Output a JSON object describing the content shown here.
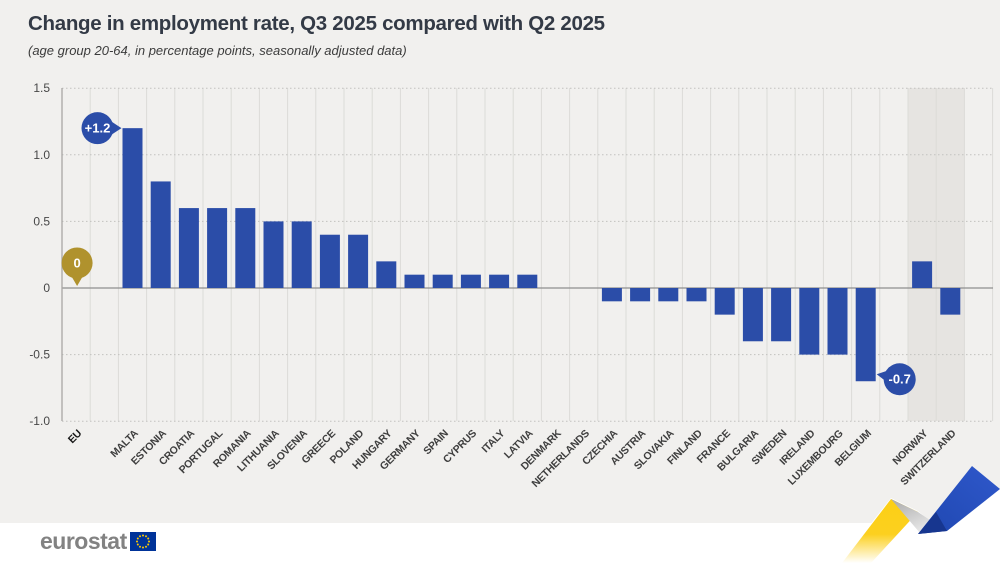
{
  "page": {
    "title": "Change in employment rate, Q3 2025 compared with Q2 2025",
    "subtitle": "(age group 20-64, in percentage points, seasonally adjusted data)"
  },
  "footer": {
    "logo_text": "eurostat"
  },
  "colors": {
    "background": "#f1f0ee",
    "bar_blue": "#2b4da8",
    "callout_blue": "#2b4da8",
    "eu_gold": "#b0922d",
    "highlight_band": "#e6e4e1",
    "grid_vertical": "#dcdbd8",
    "grid_dotted": "#c2c1bf",
    "zero_line": "#8e8e8e",
    "axis_line": "#a8a7a5",
    "tick_text": "#474747",
    "label_text": "#3e3e3e",
    "footer_bg": "#ffffff",
    "ribbon_yellow": "#fccf15",
    "ribbon_blue": "#2950c2"
  },
  "chart_data": {
    "type": "bar",
    "title": "Change in employment rate, Q3 2025 compared with Q2 2025",
    "subtitle": "(age group 20-64, in percentage points, seasonally adjusted data)",
    "xlabel": "",
    "ylabel": "",
    "ylim": [
      -1.0,
      1.5
    ],
    "grid": true,
    "ytick_values": [
      1.5,
      1.0,
      0.5,
      0,
      -0.5,
      -1.0
    ],
    "ytick_labels": [
      "1.5",
      "1.0",
      "0.5",
      "0",
      "-0.5",
      "-1.0"
    ],
    "categories": [
      "EU",
      "MALTA",
      "ESTONIA",
      "CROATIA",
      "PORTUGAL",
      "ROMANIA",
      "LITHUANIA",
      "SLOVENIA",
      "GREECE",
      "POLAND",
      "HUNGARY",
      "GERMANY",
      "SPAIN",
      "CYPRUS",
      "ITALY",
      "LATVIA",
      "DENMARK",
      "NETHERLANDS",
      "CZECHIA",
      "AUSTRIA",
      "SLOVAKIA",
      "FINLAND",
      "FRANCE",
      "BULGARIA",
      "SWEDEN",
      "IRELAND",
      "LUXEMBOURG",
      "BELGIUM",
      "NORWAY",
      "SWITZERLAND"
    ],
    "values": [
      0,
      1.2,
      0.8,
      0.6,
      0.6,
      0.6,
      0.5,
      0.5,
      0.4,
      0.4,
      0.2,
      0.1,
      0.1,
      0.1,
      0.1,
      0.1,
      0,
      0,
      -0.1,
      -0.1,
      -0.1,
      -0.1,
      -0.2,
      -0.4,
      -0.4,
      -0.5,
      -0.5,
      -0.7,
      0.2,
      -0.2
    ],
    "groups": [
      "eu",
      "ms",
      "ms",
      "ms",
      "ms",
      "ms",
      "ms",
      "ms",
      "ms",
      "ms",
      "ms",
      "ms",
      "ms",
      "ms",
      "ms",
      "ms",
      "ms",
      "ms",
      "ms",
      "ms",
      "ms",
      "ms",
      "ms",
      "ms",
      "ms",
      "ms",
      "ms",
      "ms",
      "efta",
      "efta"
    ],
    "callouts": [
      {
        "category": "EU",
        "label": "0",
        "style": "gold-pin"
      },
      {
        "category": "MALTA",
        "label": "+1.2",
        "style": "blue-left"
      },
      {
        "category": "BELGIUM",
        "label": "-0.7",
        "style": "blue-right"
      }
    ],
    "highlighted_categories": [
      "NORWAY",
      "SWITZERLAND"
    ],
    "legend": null
  }
}
